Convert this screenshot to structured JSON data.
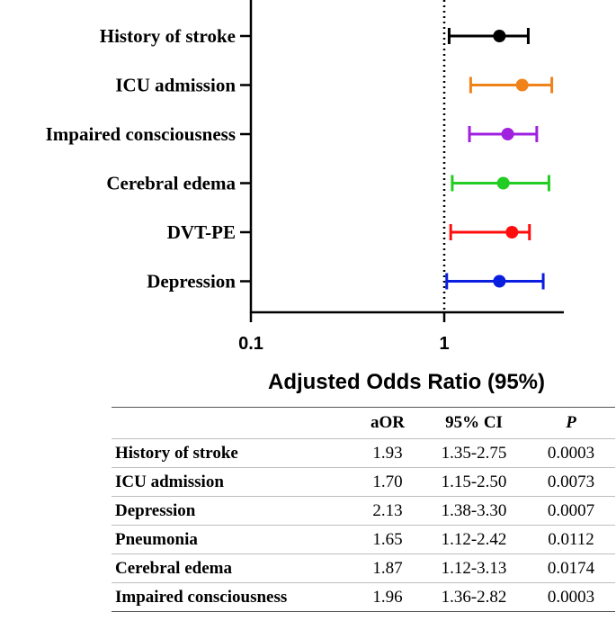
{
  "chart_data": [
    {
      "type": "forest",
      "xlabel": "Adjusted Odds Ratio (95%)",
      "xscale": "log",
      "xlim": [
        0.1,
        4.3
      ],
      "xticks": [
        {
          "value": 0.1,
          "label": "0.1"
        },
        {
          "value": 1,
          "label": "1"
        }
      ],
      "reference_line": 1,
      "rows": [
        {
          "label": "History of stroke",
          "or": 1.93,
          "lo": 1.06,
          "hi": 2.72,
          "color": "#000000"
        },
        {
          "label": "ICU admission",
          "or": 2.53,
          "lo": 1.37,
          "hi": 3.6,
          "color": "#f0821a"
        },
        {
          "label": "Impaired consciousness",
          "or": 2.13,
          "lo": 1.35,
          "hi": 3.01,
          "color": "#a020e0"
        },
        {
          "label": "Cerebral edema",
          "or": 2.02,
          "lo": 1.1,
          "hi": 3.48,
          "color": "#22cc22"
        },
        {
          "label": "DVT-PE",
          "or": 2.24,
          "lo": 1.08,
          "hi": 2.76,
          "color": "#ff0d0d"
        },
        {
          "label": "Depression",
          "or": 1.93,
          "lo": 1.03,
          "hi": 3.25,
          "color": "#0a1ee0"
        }
      ]
    },
    {
      "type": "table",
      "columns": [
        "",
        "aOR",
        "95% CI",
        "P"
      ],
      "rows": [
        [
          "History of stroke",
          "1.93",
          "1.35-2.75",
          "0.0003"
        ],
        [
          "ICU admission",
          "1.70",
          "1.15-2.50",
          "0.0073"
        ],
        [
          "Depression",
          "2.13",
          "1.38-3.30",
          "0.0007"
        ],
        [
          "Pneumonia",
          "1.65",
          "1.12-2.42",
          "0.0112"
        ],
        [
          "Cerebral edema",
          "1.87",
          "1.12-3.13",
          "0.0174"
        ],
        [
          "Impaired consciousness",
          "1.96",
          "1.36-2.82",
          "0.0003"
        ]
      ]
    }
  ]
}
